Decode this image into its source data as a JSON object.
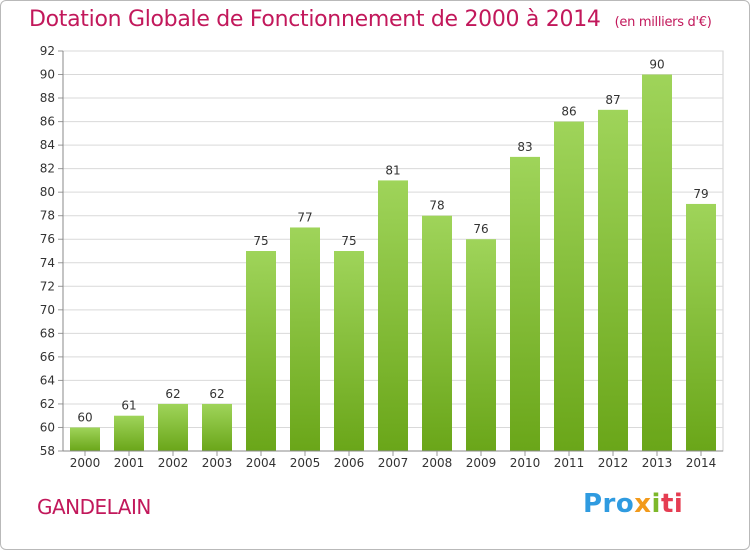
{
  "page": {
    "title": "Dotation Globale de Fonctionnement de 2000 à 2014",
    "subtitle": "(en milliers d'€)",
    "commune": "GANDELAIN",
    "logo": {
      "p1": "Pro",
      "p2": "x",
      "p3": "i",
      "p4": "ti"
    }
  },
  "colors": {
    "title": "#c2185b",
    "bar_top": "#9fd45a",
    "bar_bottom": "#6aa619",
    "grid": "#d9d9d9"
  },
  "chart_data": {
    "type": "bar",
    "title": "Dotation Globale de Fonctionnement de 2000 à 2014",
    "subtitle": "(en milliers d'€)",
    "xlabel": "",
    "ylabel": "",
    "categories": [
      "2000",
      "2001",
      "2002",
      "2003",
      "2004",
      "2005",
      "2006",
      "2007",
      "2008",
      "2009",
      "2010",
      "2011",
      "2012",
      "2013",
      "2014"
    ],
    "values": [
      60,
      61,
      62,
      62,
      75,
      77,
      75,
      81,
      78,
      76,
      83,
      86,
      87,
      90,
      79
    ],
    "ylim": [
      58,
      92
    ],
    "yticks": [
      58,
      60,
      62,
      64,
      66,
      68,
      70,
      72,
      74,
      76,
      78,
      80,
      82,
      84,
      86,
      88,
      90,
      92
    ],
    "grid": true,
    "legend": "none"
  }
}
